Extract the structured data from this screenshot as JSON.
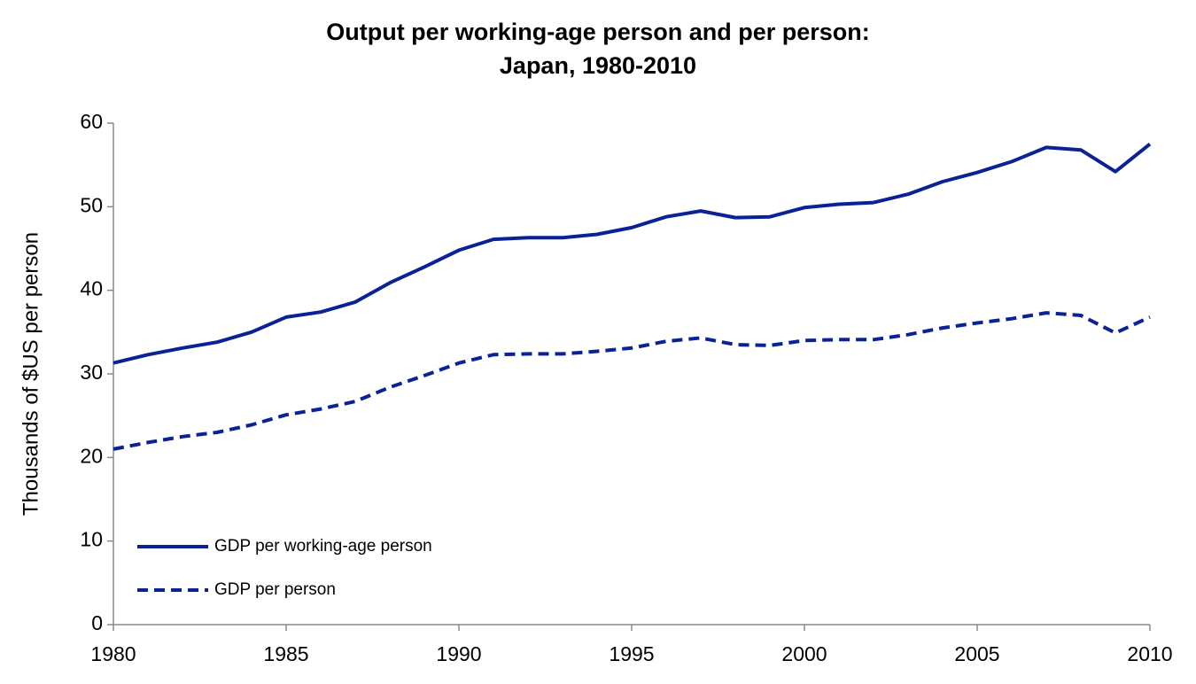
{
  "chart_data": {
    "type": "line",
    "title": [
      "Output per working-age person and per person:",
      "Japan, 1980-2010"
    ],
    "y_label": "Thousands of $US per person",
    "x": [
      1980,
      1981,
      1982,
      1983,
      1984,
      1985,
      1986,
      1987,
      1988,
      1989,
      1990,
      1991,
      1992,
      1993,
      1994,
      1995,
      1996,
      1997,
      1998,
      1999,
      2000,
      2001,
      2002,
      2003,
      2004,
      2005,
      2006,
      2007,
      2008,
      2009,
      2010
    ],
    "series": [
      {
        "name": "GDP per working-age person",
        "color": "#0a2296",
        "line_style": "solid",
        "values": [
          31.3,
          32.3,
          33.1,
          33.8,
          35.0,
          36.8,
          37.4,
          38.6,
          40.9,
          42.8,
          44.8,
          46.1,
          46.3,
          46.3,
          46.7,
          47.5,
          48.8,
          49.5,
          48.7,
          48.8,
          49.9,
          50.3,
          50.5,
          51.5,
          53.0,
          54.1,
          55.4,
          57.1,
          56.8,
          54.2,
          57.5
        ]
      },
      {
        "name": "GDP per person",
        "color": "#0a2296",
        "line_style": "dashed",
        "values": [
          21.0,
          21.8,
          22.5,
          23.0,
          23.9,
          25.1,
          25.8,
          26.7,
          28.4,
          29.8,
          31.3,
          32.3,
          32.4,
          32.4,
          32.7,
          33.1,
          33.9,
          34.3,
          33.5,
          33.4,
          34.0,
          34.1,
          34.1,
          34.7,
          35.5,
          36.1,
          36.6,
          37.3,
          37.0,
          34.9,
          36.8
        ]
      }
    ],
    "xlim": [
      1980,
      2010
    ],
    "xticks": [
      1980,
      1985,
      1990,
      1995,
      2000,
      2005,
      2010
    ],
    "ylim": [
      0,
      60
    ],
    "yticks": [
      0,
      10,
      20,
      30,
      40,
      50,
      60
    ],
    "grid": false,
    "legend_position": "lower-left"
  }
}
